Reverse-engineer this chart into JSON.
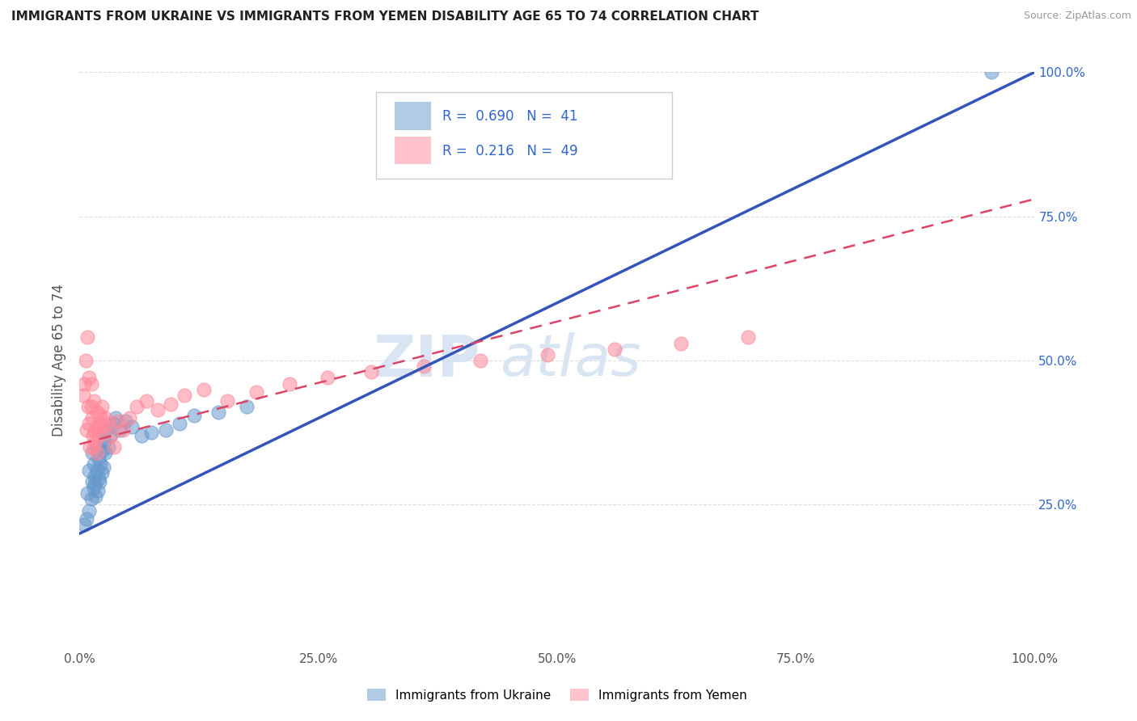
{
  "title": "IMMIGRANTS FROM UKRAINE VS IMMIGRANTS FROM YEMEN DISABILITY AGE 65 TO 74 CORRELATION CHART",
  "source": "Source: ZipAtlas.com",
  "ylabel": "Disability Age 65 to 74",
  "xlim": [
    0.0,
    1.0
  ],
  "ylim": [
    0.0,
    1.0
  ],
  "xtick_labels": [
    "0.0%",
    "25.0%",
    "50.0%",
    "75.0%",
    "100.0%"
  ],
  "xtick_vals": [
    0.0,
    0.25,
    0.5,
    0.75,
    1.0
  ],
  "ytick_labels": [
    "25.0%",
    "50.0%",
    "75.0%",
    "100.0%"
  ],
  "ytick_vals": [
    0.25,
    0.5,
    0.75,
    1.0
  ],
  "ukraine_color": "#6699CC",
  "yemen_color": "#FF8899",
  "ukraine_R": 0.69,
  "ukraine_N": 41,
  "yemen_R": 0.216,
  "yemen_N": 49,
  "ukraine_line_x0": 0.0,
  "ukraine_line_y0": 0.2,
  "ukraine_line_x1": 1.0,
  "ukraine_line_y1": 1.0,
  "yemen_line_x0": 0.0,
  "yemen_line_y0": 0.355,
  "yemen_line_x1": 1.0,
  "yemen_line_y1": 0.78,
  "ukraine_scatter_x": [
    0.005,
    0.007,
    0.008,
    0.01,
    0.01,
    0.012,
    0.013,
    0.013,
    0.015,
    0.015,
    0.016,
    0.016,
    0.017,
    0.018,
    0.018,
    0.019,
    0.02,
    0.02,
    0.021,
    0.022,
    0.023,
    0.024,
    0.025,
    0.026,
    0.027,
    0.028,
    0.03,
    0.032,
    0.035,
    0.038,
    0.042,
    0.048,
    0.055,
    0.065,
    0.075,
    0.09,
    0.105,
    0.12,
    0.145,
    0.175,
    0.955
  ],
  "ukraine_scatter_y": [
    0.215,
    0.225,
    0.27,
    0.24,
    0.31,
    0.26,
    0.29,
    0.34,
    0.28,
    0.32,
    0.285,
    0.3,
    0.265,
    0.31,
    0.35,
    0.275,
    0.295,
    0.33,
    0.29,
    0.32,
    0.305,
    0.345,
    0.315,
    0.36,
    0.34,
    0.38,
    0.35,
    0.37,
    0.39,
    0.4,
    0.38,
    0.395,
    0.385,
    0.37,
    0.375,
    0.38,
    0.39,
    0.405,
    0.41,
    0.42,
    1.0
  ],
  "yemen_scatter_x": [
    0.004,
    0.005,
    0.006,
    0.007,
    0.008,
    0.009,
    0.01,
    0.01,
    0.011,
    0.012,
    0.012,
    0.013,
    0.014,
    0.015,
    0.015,
    0.016,
    0.017,
    0.018,
    0.018,
    0.019,
    0.02,
    0.021,
    0.022,
    0.023,
    0.025,
    0.027,
    0.03,
    0.033,
    0.036,
    0.04,
    0.045,
    0.052,
    0.06,
    0.07,
    0.082,
    0.095,
    0.11,
    0.13,
    0.155,
    0.185,
    0.22,
    0.26,
    0.305,
    0.36,
    0.42,
    0.49,
    0.56,
    0.63,
    0.7
  ],
  "yemen_scatter_y": [
    0.44,
    0.46,
    0.5,
    0.38,
    0.54,
    0.42,
    0.39,
    0.47,
    0.35,
    0.42,
    0.46,
    0.4,
    0.37,
    0.35,
    0.43,
    0.38,
    0.36,
    0.34,
    0.41,
    0.385,
    0.37,
    0.39,
    0.405,
    0.42,
    0.385,
    0.4,
    0.39,
    0.37,
    0.35,
    0.395,
    0.38,
    0.4,
    0.42,
    0.43,
    0.415,
    0.425,
    0.44,
    0.45,
    0.43,
    0.445,
    0.46,
    0.47,
    0.48,
    0.49,
    0.5,
    0.51,
    0.52,
    0.53,
    0.54
  ],
  "background_color": "#ffffff",
  "watermark_text": "ZIP",
  "watermark_text2": "atlas",
  "grid_color": "#dddddd"
}
